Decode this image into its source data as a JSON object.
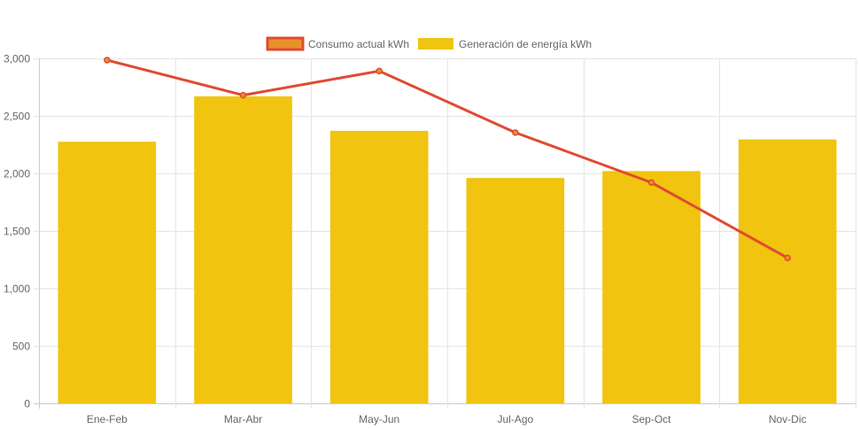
{
  "chart_data": {
    "type": "bar",
    "categories": [
      "Ene-Feb",
      "Mar-Abr",
      "May-Jun",
      "Jul-Ago",
      "Sep-Oct",
      "Nov-Dic"
    ],
    "series": [
      {
        "name": "Consumo actual kWh",
        "type": "line",
        "values": [
          2985,
          2680,
          2890,
          2355,
          1920,
          1265
        ],
        "color": "#e04a33",
        "fill": "#e8912b"
      },
      {
        "name": "Generación de energía kWh",
        "type": "bar",
        "values": [
          2275,
          2670,
          2370,
          1960,
          2020,
          2295
        ],
        "color": "#f1c40f"
      }
    ],
    "ylim": [
      0,
      3000
    ],
    "yticks": [
      0,
      500,
      1000,
      1500,
      2000,
      2500,
      3000
    ],
    "ytick_labels": [
      "0",
      "500",
      "1,000",
      "1,500",
      "2,000",
      "2,500",
      "3,000"
    ],
    "grid": true,
    "legend_position": "top-center"
  }
}
